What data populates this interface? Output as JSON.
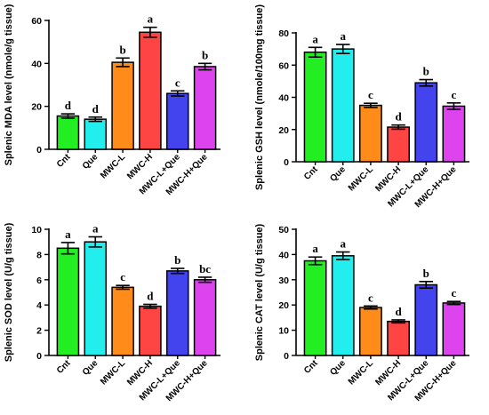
{
  "chart_data": [
    {
      "type": "bar",
      "ylabel": "Splenic MDA level (nmole/g tissue)",
      "categories": [
        "Cnt",
        "Que",
        "MWC-L",
        "MWC-H",
        "MWC-L+Que",
        "MWC-H+Que"
      ],
      "values": [
        15.5,
        14.0,
        40.5,
        54.5,
        26.0,
        38.5
      ],
      "errors": [
        1.0,
        1.0,
        2.0,
        2.3,
        1.2,
        1.5
      ],
      "letters": [
        "d",
        "d",
        "b",
        "a",
        "c",
        "b"
      ],
      "colors": [
        "#22ee22",
        "#22eeee",
        "#ff8c1a",
        "#ff4444",
        "#4444ee",
        "#dd44ee"
      ],
      "ylim": [
        0,
        60
      ],
      "yticks": [
        0,
        20,
        40,
        60
      ]
    },
    {
      "type": "bar",
      "ylabel": "Splenic GSH level (nmole/100mg tissue)",
      "categories": [
        "Cnt",
        "Que",
        "MWC-L",
        "MWC-H",
        "MWC-L+Que",
        "MWC-H+Que"
      ],
      "values": [
        68.0,
        70.0,
        35.0,
        21.5,
        49.0,
        34.5
      ],
      "errors": [
        3.0,
        2.8,
        1.3,
        1.3,
        2.0,
        2.0
      ],
      "letters": [
        "a",
        "a",
        "c",
        "d",
        "b",
        "c"
      ],
      "colors": [
        "#22ee22",
        "#22eeee",
        "#ff8c1a",
        "#ff4444",
        "#4444ee",
        "#dd44ee"
      ],
      "ylim": [
        0,
        80
      ],
      "yticks": [
        0,
        20,
        40,
        60,
        80
      ]
    },
    {
      "type": "bar",
      "ylabel": "Splenic SOD level (U/g tissue)",
      "categories": [
        "Cnt",
        "Que",
        "MWC-L",
        "MWC-H",
        "MWC-L+Que",
        "MWC-H+Que"
      ],
      "values": [
        8.5,
        9.0,
        5.4,
        3.9,
        6.7,
        6.0
      ],
      "errors": [
        0.45,
        0.4,
        0.15,
        0.15,
        0.2,
        0.2
      ],
      "letters": [
        "a",
        "a",
        "c",
        "d",
        "b",
        "bc"
      ],
      "colors": [
        "#22ee22",
        "#22eeee",
        "#ff8c1a",
        "#ff4444",
        "#4444ee",
        "#dd44ee"
      ],
      "ylim": [
        0,
        10
      ],
      "yticks": [
        0,
        2,
        4,
        6,
        8,
        10
      ]
    },
    {
      "type": "bar",
      "ylabel": "Splenic CAT level (U/g tissue)",
      "categories": [
        "Cnt",
        "Que",
        "MWC-L",
        "MWC-H",
        "MWC-L+Que",
        "MWC-H+Que"
      ],
      "values": [
        37.5,
        39.5,
        19.0,
        13.5,
        28.0,
        20.8
      ],
      "errors": [
        1.5,
        1.5,
        0.6,
        0.6,
        1.3,
        0.6
      ],
      "letters": [
        "a",
        "a",
        "c",
        "d",
        "b",
        "c"
      ],
      "colors": [
        "#22ee22",
        "#22eeee",
        "#ff8c1a",
        "#ff4444",
        "#4444ee",
        "#dd44ee"
      ],
      "ylim": [
        0,
        50
      ],
      "yticks": [
        0,
        10,
        20,
        30,
        40,
        50
      ]
    }
  ]
}
